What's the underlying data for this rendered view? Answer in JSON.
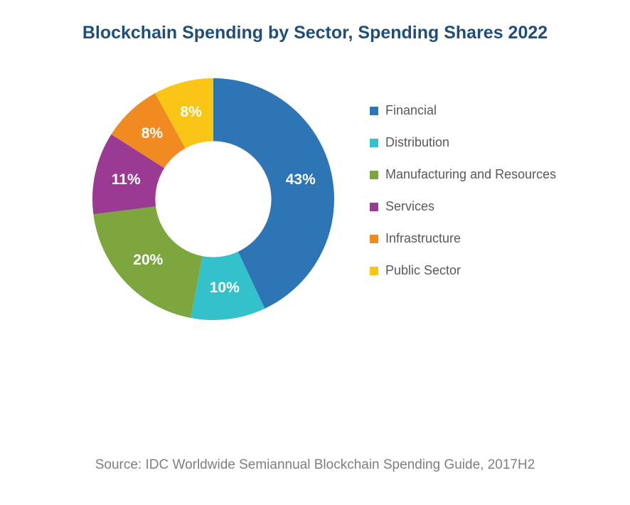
{
  "chart": {
    "type": "donut",
    "title": "Blockchain Spending by Sector, Spending Shares 2022",
    "title_color": "#1f4e79",
    "title_fontsize": 25,
    "background_color": "#ffffff",
    "inner_radius_ratio": 0.48,
    "outer_radius": 170,
    "start_angle_deg": 0,
    "slices": [
      {
        "label": "Financial",
        "value": 43,
        "percent_text": "43%",
        "color": "#2e75b6"
      },
      {
        "label": "Distribution",
        "value": 10,
        "percent_text": "10%",
        "color": "#33c2cb"
      },
      {
        "label": "Manufacturing and Resources",
        "value": 20,
        "percent_text": "20%",
        "color": "#7ea63f"
      },
      {
        "label": "Services",
        "value": 11,
        "percent_text": "11%",
        "color": "#9a3a93"
      },
      {
        "label": "Infrastructure",
        "value": 8,
        "percent_text": "8%",
        "color": "#f08a21"
      },
      {
        "label": "Public Sector",
        "value": 8,
        "percent_text": "8%",
        "color": "#f9c617"
      }
    ],
    "data_label_fontsize": 21,
    "data_label_color": "#ffffff",
    "legend": {
      "fontsize": 18,
      "text_color": "#595959",
      "swatch_size": 12
    },
    "source_text": "Source: IDC Worldwide Semiannual Blockchain Spending Guide, 2017H2",
    "source_color": "#7f7f7f",
    "source_fontsize": 19
  }
}
